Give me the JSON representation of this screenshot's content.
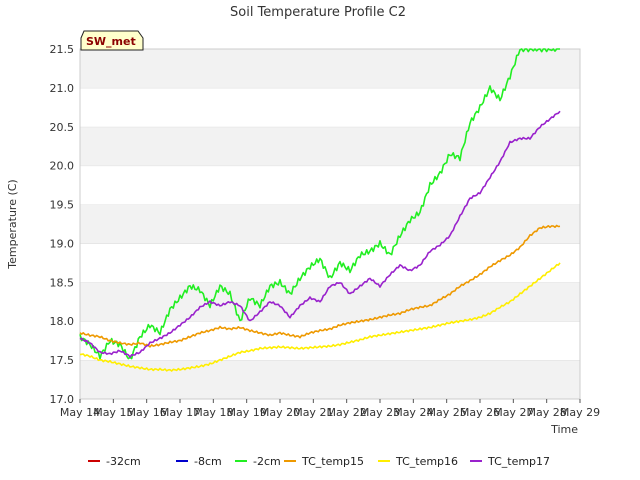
{
  "chart_data": {
    "type": "line",
    "title": "Soil Temperature Profile C2",
    "xlabel": "Time",
    "ylabel": "Temperature (C)",
    "ylim": [
      17.0,
      21.5
    ],
    "yticks": [
      "17.0",
      "17.5",
      "18.0",
      "18.5",
      "19.0",
      "19.5",
      "20.0",
      "20.5",
      "21.0",
      "21.5"
    ],
    "xlim": [
      0,
      15
    ],
    "xticks": [
      "May 14",
      "May 15",
      "May 16",
      "May 17",
      "May 18",
      "May 19",
      "May 20",
      "May 21",
      "May 22",
      "May 23",
      "May 24",
      "May 25",
      "May 26",
      "May 27",
      "May 28",
      "May 29"
    ],
    "station_label": "SW_met",
    "grid": "horizontal bands",
    "legend_position": "bottom",
    "series": [
      {
        "name": "-32cm",
        "color": "#cc0000",
        "x": [],
        "values": []
      },
      {
        "name": "-8cm",
        "color": "#0000cc",
        "x": [],
        "values": []
      },
      {
        "name": "-2cm",
        "color": "#22ee22",
        "x": [
          0,
          0.3,
          0.6,
          0.9,
          1.2,
          1.5,
          1.8,
          2.1,
          2.4,
          2.7,
          3.0,
          3.3,
          3.6,
          3.9,
          4.2,
          4.5,
          4.8,
          5.1,
          5.4,
          5.7,
          6.0,
          6.3,
          6.6,
          6.9,
          7.2,
          7.5,
          7.8,
          8.1,
          8.4,
          8.7,
          9.0,
          9.3,
          9.6,
          9.9,
          10.2,
          10.5,
          10.8,
          11.1,
          11.4,
          11.7,
          12.0,
          12.3,
          12.6,
          12.9,
          13.2,
          13.5,
          13.8,
          14.1,
          14.4
        ],
        "values": [
          17.8,
          17.7,
          17.55,
          17.75,
          17.7,
          17.5,
          17.8,
          17.95,
          17.85,
          18.15,
          18.3,
          18.45,
          18.4,
          18.2,
          18.45,
          18.35,
          18.0,
          18.3,
          18.2,
          18.45,
          18.5,
          18.35,
          18.55,
          18.7,
          18.8,
          18.55,
          18.75,
          18.65,
          18.85,
          18.9,
          19.0,
          18.85,
          19.1,
          19.3,
          19.4,
          19.75,
          19.9,
          20.15,
          20.1,
          20.55,
          20.75,
          21.0,
          20.85,
          21.15,
          21.5,
          21.5,
          21.5,
          21.5,
          21.5
        ]
      },
      {
        "name": "TC_temp15",
        "color": "#ee9900",
        "x": [
          0,
          0.3,
          0.6,
          0.9,
          1.2,
          1.5,
          1.8,
          2.1,
          2.4,
          2.7,
          3.0,
          3.3,
          3.6,
          3.9,
          4.2,
          4.5,
          4.8,
          5.1,
          5.4,
          5.7,
          6.0,
          6.3,
          6.6,
          6.9,
          7.2,
          7.5,
          7.8,
          8.1,
          8.4,
          8.7,
          9.0,
          9.3,
          9.6,
          9.9,
          10.2,
          10.5,
          10.8,
          11.1,
          11.4,
          11.7,
          12.0,
          12.3,
          12.6,
          12.9,
          13.2,
          13.5,
          13.8,
          14.1,
          14.4
        ],
        "values": [
          17.85,
          17.82,
          17.8,
          17.75,
          17.72,
          17.7,
          17.72,
          17.68,
          17.7,
          17.73,
          17.75,
          17.8,
          17.85,
          17.88,
          17.92,
          17.9,
          17.92,
          17.88,
          17.85,
          17.82,
          17.85,
          17.82,
          17.8,
          17.85,
          17.88,
          17.9,
          17.95,
          17.98,
          18.0,
          18.02,
          18.05,
          18.08,
          18.1,
          18.15,
          18.18,
          18.2,
          18.28,
          18.35,
          18.45,
          18.52,
          18.6,
          18.7,
          18.78,
          18.85,
          18.95,
          19.1,
          19.2,
          19.22,
          19.22
        ]
      },
      {
        "name": "TC_temp16",
        "color": "#ffee00",
        "x": [
          0,
          0.3,
          0.6,
          0.9,
          1.2,
          1.5,
          1.8,
          2.1,
          2.4,
          2.7,
          3.0,
          3.3,
          3.6,
          3.9,
          4.2,
          4.5,
          4.8,
          5.1,
          5.4,
          5.7,
          6.0,
          6.3,
          6.6,
          6.9,
          7.2,
          7.5,
          7.8,
          8.1,
          8.4,
          8.7,
          9.0,
          9.3,
          9.6,
          9.9,
          10.2,
          10.5,
          10.8,
          11.1,
          11.4,
          11.7,
          12.0,
          12.3,
          12.6,
          12.9,
          13.2,
          13.5,
          13.8,
          14.1,
          14.4
        ],
        "values": [
          17.58,
          17.55,
          17.5,
          17.48,
          17.45,
          17.42,
          17.4,
          17.38,
          17.38,
          17.37,
          17.38,
          17.4,
          17.42,
          17.45,
          17.5,
          17.55,
          17.6,
          17.62,
          17.65,
          17.66,
          17.67,
          17.66,
          17.65,
          17.66,
          17.67,
          17.68,
          17.7,
          17.73,
          17.76,
          17.8,
          17.82,
          17.84,
          17.86,
          17.88,
          17.9,
          17.92,
          17.95,
          17.98,
          18.0,
          18.02,
          18.05,
          18.1,
          18.18,
          18.25,
          18.35,
          18.45,
          18.55,
          18.65,
          18.75
        ]
      },
      {
        "name": "TC_temp17",
        "color": "#9922cc",
        "x": [
          0,
          0.3,
          0.6,
          0.9,
          1.2,
          1.5,
          1.8,
          2.1,
          2.4,
          2.7,
          3.0,
          3.3,
          3.6,
          3.9,
          4.2,
          4.5,
          4.8,
          5.1,
          5.4,
          5.7,
          6.0,
          6.3,
          6.6,
          6.9,
          7.2,
          7.5,
          7.8,
          8.1,
          8.4,
          8.7,
          9.0,
          9.3,
          9.6,
          9.9,
          10.2,
          10.5,
          10.8,
          11.1,
          11.4,
          11.7,
          12.0,
          12.3,
          12.6,
          12.9,
          13.2,
          13.5,
          13.8,
          14.1,
          14.4
        ],
        "values": [
          17.78,
          17.72,
          17.6,
          17.58,
          17.62,
          17.55,
          17.6,
          17.72,
          17.78,
          17.85,
          17.95,
          18.05,
          18.18,
          18.25,
          18.2,
          18.25,
          18.2,
          18.0,
          18.12,
          18.25,
          18.2,
          18.05,
          18.2,
          18.3,
          18.25,
          18.45,
          18.5,
          18.35,
          18.45,
          18.55,
          18.45,
          18.6,
          18.72,
          18.65,
          18.72,
          18.9,
          18.98,
          19.1,
          19.35,
          19.58,
          19.65,
          19.85,
          20.05,
          20.3,
          20.35,
          20.35,
          20.5,
          20.6,
          20.7
        ]
      }
    ]
  }
}
